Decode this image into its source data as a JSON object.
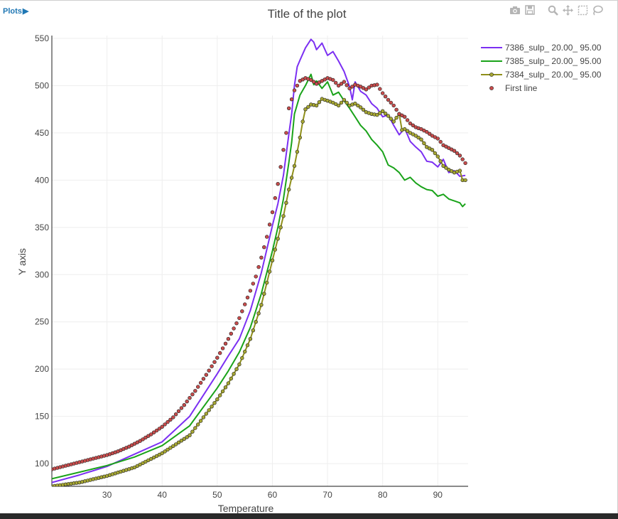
{
  "app": {
    "plots_label": "Plots",
    "title": "Title of the plot"
  },
  "modebar": {
    "icons": [
      "camera-icon",
      "save-icon",
      "zoom-icon",
      "pan-icon",
      "box-select-icon",
      "lasso-icon"
    ],
    "color": "#b5b5b5"
  },
  "chart_data": {
    "type": "line",
    "title": "Title of the plot",
    "xlabel": "Temperature",
    "ylabel": "Y axis",
    "xlim": [
      20,
      95.5
    ],
    "ylim": [
      76,
      553
    ],
    "xticks": [
      30,
      40,
      50,
      60,
      70,
      80,
      90
    ],
    "yticks": [
      100,
      150,
      200,
      250,
      300,
      350,
      400,
      450,
      500,
      550
    ],
    "grid": true,
    "legend_position": "top-right",
    "series": [
      {
        "name": "7386_sulp_  20.00_  95.00",
        "mode": "lines",
        "color": "#7b2ff2",
        "points": [
          [
            20,
            80
          ],
          [
            25,
            88
          ],
          [
            30,
            97
          ],
          [
            35,
            110
          ],
          [
            40,
            123
          ],
          [
            45,
            150
          ],
          [
            50,
            195
          ],
          [
            52,
            214
          ],
          [
            54,
            232
          ],
          [
            56,
            262
          ],
          [
            58,
            302
          ],
          [
            60,
            352
          ],
          [
            61,
            375
          ],
          [
            62,
            405
          ],
          [
            63,
            449
          ],
          [
            63.5,
            470
          ],
          [
            64,
            500
          ],
          [
            64.5,
            520
          ],
          [
            65,
            527
          ],
          [
            66,
            540
          ],
          [
            67,
            549
          ],
          [
            67.5,
            546
          ],
          [
            68,
            538
          ],
          [
            69,
            545
          ],
          [
            70,
            532
          ],
          [
            71,
            536
          ],
          [
            72,
            526
          ],
          [
            73,
            515
          ],
          [
            74,
            499
          ],
          [
            74.5,
            485
          ],
          [
            75,
            504
          ],
          [
            76,
            494
          ],
          [
            77,
            490
          ],
          [
            78,
            481
          ],
          [
            79,
            476
          ],
          [
            80,
            467
          ],
          [
            81,
            469
          ],
          [
            82,
            458
          ],
          [
            83,
            448
          ],
          [
            84,
            455
          ],
          [
            85,
            441
          ],
          [
            86,
            435
          ],
          [
            87,
            430
          ],
          [
            88,
            420
          ],
          [
            89,
            419
          ],
          [
            90,
            414
          ],
          [
            91,
            422
          ],
          [
            92,
            408
          ],
          [
            93,
            410
          ],
          [
            94,
            404
          ],
          [
            95,
            405
          ]
        ]
      },
      {
        "name": "7385_sulp_  20.00_  95.00",
        "mode": "lines",
        "color": "#1aa31a",
        "points": [
          [
            20,
            84
          ],
          [
            25,
            91
          ],
          [
            30,
            98
          ],
          [
            35,
            107
          ],
          [
            40,
            119
          ],
          [
            45,
            140
          ],
          [
            50,
            180
          ],
          [
            52,
            198
          ],
          [
            54,
            218
          ],
          [
            56,
            244
          ],
          [
            58,
            280
          ],
          [
            60,
            325
          ],
          [
            61,
            350
          ],
          [
            62,
            380
          ],
          [
            63,
            419
          ],
          [
            63.5,
            440
          ],
          [
            64,
            470
          ],
          [
            65,
            490
          ],
          [
            66,
            500
          ],
          [
            67,
            512
          ],
          [
            67.5,
            501
          ],
          [
            68,
            505
          ],
          [
            69,
            497
          ],
          [
            70,
            504
          ],
          [
            71,
            490
          ],
          [
            72,
            493
          ],
          [
            73,
            484
          ],
          [
            74,
            476
          ],
          [
            75,
            467
          ],
          [
            76,
            458
          ],
          [
            77,
            452
          ],
          [
            78,
            443
          ],
          [
            79,
            437
          ],
          [
            80,
            430
          ],
          [
            81,
            416
          ],
          [
            82,
            413
          ],
          [
            83,
            408
          ],
          [
            84,
            400
          ],
          [
            85,
            403
          ],
          [
            86,
            397
          ],
          [
            87,
            393
          ],
          [
            88,
            390
          ],
          [
            89,
            389
          ],
          [
            90,
            383
          ],
          [
            91,
            385
          ],
          [
            92,
            380
          ],
          [
            93,
            378
          ],
          [
            94,
            376
          ],
          [
            94.5,
            372
          ],
          [
            95,
            375
          ]
        ]
      },
      {
        "name": "7384_sulp_  20.00_  95.00",
        "mode": "lines+markers",
        "color": "#8f8f1a",
        "marker_color": "#a8a832",
        "points": [
          [
            20,
            76
          ],
          [
            25,
            80
          ],
          [
            30,
            87
          ],
          [
            35,
            96
          ],
          [
            40,
            111
          ],
          [
            45,
            130
          ],
          [
            50,
            168
          ],
          [
            52,
            185
          ],
          [
            54,
            205
          ],
          [
            56,
            232
          ],
          [
            58,
            268
          ],
          [
            60,
            315
          ],
          [
            61,
            338
          ],
          [
            62,
            362
          ],
          [
            63,
            390
          ],
          [
            64,
            415
          ],
          [
            65,
            445
          ],
          [
            65.5,
            462
          ],
          [
            66,
            475
          ],
          [
            67,
            480
          ],
          [
            68,
            479
          ],
          [
            69,
            486
          ],
          [
            70,
            484
          ],
          [
            71,
            482
          ],
          [
            72,
            479
          ],
          [
            73,
            485
          ],
          [
            74,
            479
          ],
          [
            75,
            481
          ],
          [
            76,
            477
          ],
          [
            77,
            472
          ],
          [
            78,
            470
          ],
          [
            79,
            469
          ],
          [
            80,
            473
          ],
          [
            81,
            468
          ],
          [
            82,
            462
          ],
          [
            83,
            470
          ],
          [
            83.5,
            453
          ],
          [
            84,
            454
          ],
          [
            85,
            450
          ],
          [
            86,
            447
          ],
          [
            87,
            443
          ],
          [
            88,
            435
          ],
          [
            89,
            432
          ],
          [
            90,
            425
          ],
          [
            91,
            415
          ],
          [
            92,
            411
          ],
          [
            93,
            408
          ],
          [
            94,
            410
          ],
          [
            94.5,
            400
          ],
          [
            95,
            400
          ]
        ]
      },
      {
        "name": "First line",
        "mode": "markers",
        "color": "#c94c4c",
        "points": [
          [
            20,
            94
          ],
          [
            22,
            97
          ],
          [
            24,
            100
          ],
          [
            26,
            103
          ],
          [
            28,
            106
          ],
          [
            30,
            109
          ],
          [
            32,
            113
          ],
          [
            34,
            118
          ],
          [
            36,
            124
          ],
          [
            38,
            131
          ],
          [
            40,
            139
          ],
          [
            42,
            149
          ],
          [
            44,
            162
          ],
          [
            46,
            177
          ],
          [
            48,
            194
          ],
          [
            50,
            212
          ],
          [
            52,
            232
          ],
          [
            54,
            254
          ],
          [
            56,
            283
          ],
          [
            57,
            298
          ],
          [
            58,
            318
          ],
          [
            59,
            340
          ],
          [
            60,
            366
          ],
          [
            61,
            396
          ],
          [
            62,
            432
          ],
          [
            62.5,
            450
          ],
          [
            63,
            476
          ],
          [
            64,
            495
          ],
          [
            65,
            505
          ],
          [
            66,
            508
          ],
          [
            67,
            506
          ],
          [
            68,
            502
          ],
          [
            69,
            505
          ],
          [
            70,
            508
          ],
          [
            71,
            506
          ],
          [
            72,
            500
          ],
          [
            73,
            504
          ],
          [
            74,
            497
          ],
          [
            75,
            501
          ],
          [
            76,
            499
          ],
          [
            77,
            496
          ],
          [
            78,
            500
          ],
          [
            79,
            501
          ],
          [
            80,
            492
          ],
          [
            81,
            485
          ],
          [
            82,
            479
          ],
          [
            83,
            470
          ],
          [
            84,
            467
          ],
          [
            85,
            460
          ],
          [
            86,
            456
          ],
          [
            87,
            454
          ],
          [
            88,
            451
          ],
          [
            89,
            447
          ],
          [
            90,
            444
          ],
          [
            91,
            437
          ],
          [
            92,
            434
          ],
          [
            93,
            431
          ],
          [
            94,
            426
          ],
          [
            95,
            418
          ]
        ]
      }
    ]
  }
}
